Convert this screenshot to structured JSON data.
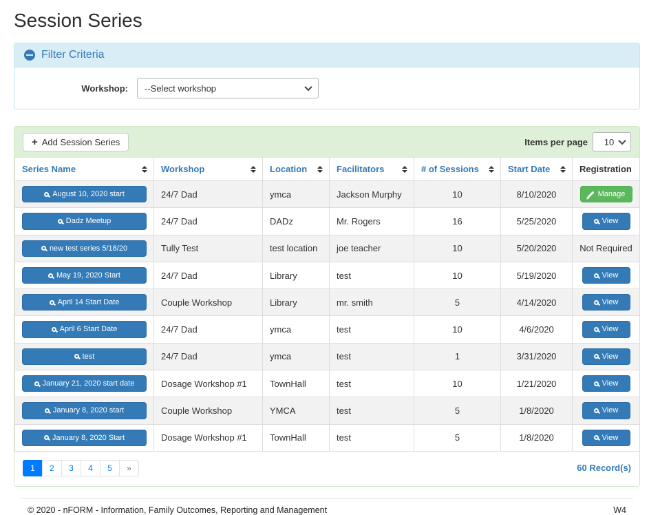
{
  "page": {
    "title": "Session Series"
  },
  "filter": {
    "title": "Filter Criteria",
    "workshop_label": "Workshop:",
    "workshop_value": "--Select workshop"
  },
  "toolbar": {
    "add_button": "Add Session Series",
    "items_per_page_label": "Items per page",
    "items_per_page_value": "10"
  },
  "table": {
    "headers": [
      {
        "label": "Series Name",
        "sortable": true
      },
      {
        "label": "Workshop",
        "sortable": true
      },
      {
        "label": "Location",
        "sortable": true
      },
      {
        "label": "Facilitators",
        "sortable": true
      },
      {
        "label": "# of Sessions",
        "sortable": true
      },
      {
        "label": "Start Date",
        "sortable": true
      },
      {
        "label": "Registration",
        "sortable": false
      }
    ],
    "rows": [
      {
        "series_name": "August 10, 2020 start",
        "workshop": "24/7 Dad",
        "location": "ymca",
        "facilitators": "Jackson Murphy",
        "sessions": "10",
        "start_date": "8/10/2020",
        "registration": {
          "type": "manage",
          "label": "Manage"
        }
      },
      {
        "series_name": "Dadz Meetup",
        "workshop": "24/7 Dad",
        "location": "DADz",
        "facilitators": "Mr. Rogers",
        "sessions": "16",
        "start_date": "5/25/2020",
        "registration": {
          "type": "view",
          "label": "View"
        }
      },
      {
        "series_name": "new test series 5/18/20",
        "workshop": "Tully Test",
        "location": "test location",
        "facilitators": "joe teacher",
        "sessions": "10",
        "start_date": "5/20/2020",
        "registration": {
          "type": "text",
          "label": "Not Required"
        }
      },
      {
        "series_name": "May 19, 2020 Start",
        "workshop": "24/7 Dad",
        "location": "Library",
        "facilitators": "test",
        "sessions": "10",
        "start_date": "5/19/2020",
        "registration": {
          "type": "view",
          "label": "View"
        }
      },
      {
        "series_name": "April 14 Start Date",
        "workshop": "Couple Workshop",
        "location": "Library",
        "facilitators": "mr. smith",
        "sessions": "5",
        "start_date": "4/14/2020",
        "registration": {
          "type": "view",
          "label": "View"
        }
      },
      {
        "series_name": "April 6 Start Date",
        "workshop": "24/7 Dad",
        "location": "ymca",
        "facilitators": "test",
        "sessions": "10",
        "start_date": "4/6/2020",
        "registration": {
          "type": "view",
          "label": "View"
        }
      },
      {
        "series_name": "test",
        "workshop": "24/7 Dad",
        "location": "ymca",
        "facilitators": "test",
        "sessions": "1",
        "start_date": "3/31/2020",
        "registration": {
          "type": "view",
          "label": "View"
        }
      },
      {
        "series_name": "January 21, 2020 start date",
        "workshop": "Dosage Workshop #1",
        "location": "TownHall",
        "facilitators": "test",
        "sessions": "10",
        "start_date": "1/21/2020",
        "registration": {
          "type": "view",
          "label": "View"
        }
      },
      {
        "series_name": "January 8, 2020 start",
        "workshop": "Couple Workshop",
        "location": "YMCA",
        "facilitators": "test",
        "sessions": "5",
        "start_date": "1/8/2020",
        "registration": {
          "type": "view",
          "label": "View"
        }
      },
      {
        "series_name": "January 8, 2020 Start",
        "workshop": "Dosage Workshop #1",
        "location": "TownHall",
        "facilitators": "test",
        "sessions": "5",
        "start_date": "1/8/2020",
        "registration": {
          "type": "view",
          "label": "View"
        }
      }
    ]
  },
  "pagination": {
    "pages": [
      "1",
      "2",
      "3",
      "4",
      "5"
    ],
    "active": "1",
    "next": "»",
    "record_count": "60 Record(s)"
  },
  "footer": {
    "copyright": "© 2020 - nFORM - Information, Family Outcomes, Reporting and Management",
    "version": "W4"
  },
  "icons": {
    "collapse": "minus-circle-icon",
    "add": "plus-icon",
    "search": "search-icon",
    "edit": "pencil-icon",
    "sort": "sort-icon",
    "dropdown": "chevron-down-icon"
  },
  "colors": {
    "primary_blue": "#337ab7",
    "button_border_blue": "#2e6da4",
    "success_green": "#5cb85c",
    "success_border": "#4cae4c",
    "toolbar_green_bg": "#dff0d8",
    "filter_blue_bg": "#d9edf7",
    "filter_blue_border": "#bce8f1",
    "stripe_gray": "#f2f2f2",
    "active_page_blue": "#007bff"
  }
}
